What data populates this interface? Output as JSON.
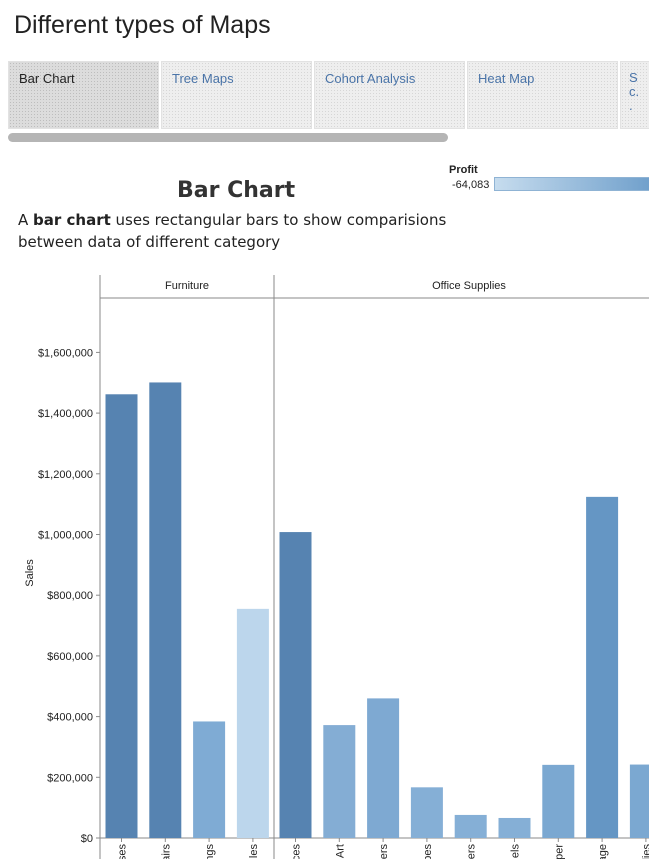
{
  "page": {
    "title": "Different types of Maps",
    "tabs": [
      {
        "label": "Bar Chart",
        "active": true
      },
      {
        "label": "Tree Maps",
        "active": false
      },
      {
        "label": "Cohort Analysis",
        "active": false
      },
      {
        "label": "Heat Map",
        "active": false
      },
      {
        "label": "S\nc.\n.",
        "active": false
      }
    ]
  },
  "section": {
    "title": "Bar Chart",
    "desc_prefix": "A ",
    "desc_bold": "bar chart",
    "desc_rest": " uses rectangular bars to show comparisions between data of different category"
  },
  "legend": {
    "title": "Profit",
    "min_label": "-64,083",
    "colors": [
      "#c6dcee",
      "#6f9fcb"
    ]
  },
  "chart_data": {
    "type": "bar",
    "ylabel": "Sales",
    "ylim": [
      0,
      1800000
    ],
    "yticks": [
      {
        "value": 0,
        "label": "$0"
      },
      {
        "value": 200000,
        "label": "$200,000"
      },
      {
        "value": 400000,
        "label": "$400,000"
      },
      {
        "value": 600000,
        "label": "$600,000"
      },
      {
        "value": 800000,
        "label": "$800,000"
      },
      {
        "value": 1000000,
        "label": "$1,000,000"
      },
      {
        "value": 1200000,
        "label": "$1,200,000"
      },
      {
        "value": 1400000,
        "label": "$1,400,000"
      },
      {
        "value": 1600000,
        "label": "$1,600,000"
      }
    ],
    "panels": [
      {
        "name": "Furniture",
        "bars": [
          {
            "label": "ses",
            "value": 1462000,
            "color": "#5683b1"
          },
          {
            "label": "airs",
            "value": 1501000,
            "color": "#5683b1"
          },
          {
            "label": "ngs",
            "value": 384000,
            "color": "#7fabd4"
          },
          {
            "label": "les",
            "value": 755000,
            "color": "#bcd6ec"
          }
        ]
      },
      {
        "name": "Office Supplies",
        "bars": [
          {
            "label": "ces",
            "value": 1008000,
            "color": "#5683b1"
          },
          {
            "label": "Art",
            "value": 372000,
            "color": "#84add4"
          },
          {
            "label": "ers",
            "value": 460000,
            "color": "#7ea9d2"
          },
          {
            "label": "pes",
            "value": 167000,
            "color": "#85afd6"
          },
          {
            "label": "ers",
            "value": 76000,
            "color": "#85afd6"
          },
          {
            "label": "els",
            "value": 66000,
            "color": "#85afd6"
          },
          {
            "label": "per",
            "value": 241000,
            "color": "#7ba8d1"
          },
          {
            "label": "age",
            "value": 1124000,
            "color": "#6596c4"
          },
          {
            "label": "lies",
            "value": 242000,
            "color": "#7ba8d1"
          }
        ]
      }
    ]
  }
}
